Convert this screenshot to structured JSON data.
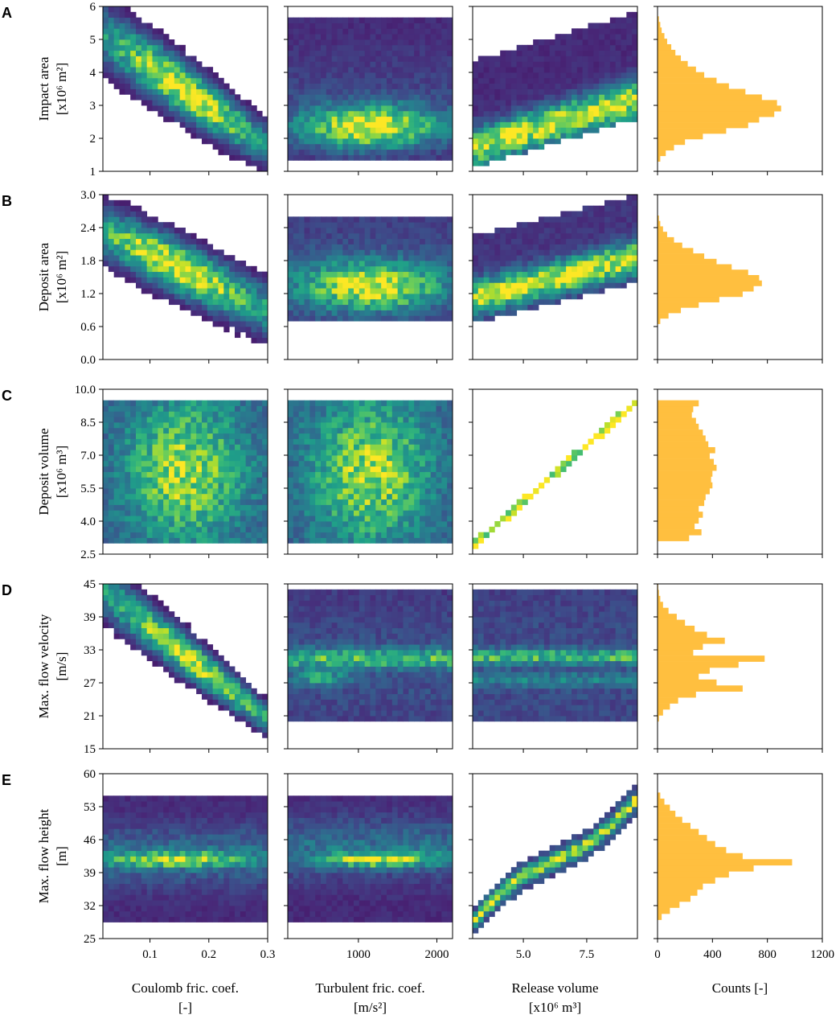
{
  "chart_data": {
    "type": "heatmap",
    "layout": "5 rows x 4 columns grid: 2D histograms of outputs vs inputs, plus marginal histogram of each output",
    "colors": {
      "heatmap_colormap": "viridis",
      "histogram": "#ffbf3f"
    },
    "row_letters": [
      "A",
      "B",
      "C",
      "D",
      "E"
    ],
    "columns": [
      {
        "name": "coulomb",
        "xlabel": [
          "Coulomb fric. coef.",
          "[-]"
        ],
        "xlim": [
          0.02,
          0.3
        ],
        "xticks": [
          "0.1",
          "0.2",
          "0.3"
        ],
        "xtick_values": [
          0.1,
          0.2,
          0.3
        ]
      },
      {
        "name": "turbulent",
        "xlabel": [
          "Turbulent fric. coef.",
          "[m/s²]"
        ],
        "xlim": [
          100,
          2200
        ],
        "xticks": [
          "1000",
          "2000"
        ],
        "xtick_values": [
          1000,
          2000
        ]
      },
      {
        "name": "release",
        "xlabel": [
          "Release volume",
          "[x10⁶ m³]"
        ],
        "xlim": [
          3.0,
          9.5
        ],
        "xticks": [
          "5.0",
          "7.5"
        ],
        "xtick_values": [
          5.0,
          7.5
        ]
      },
      {
        "name": "counts",
        "xlabel": [
          "Counts [-]",
          ""
        ],
        "xlim": [
          0,
          1200
        ],
        "xticks": [
          "0",
          "400",
          "800",
          "1200"
        ],
        "xtick_values": [
          0,
          400,
          800,
          1200
        ]
      }
    ],
    "rows": [
      {
        "letter": "A",
        "ylabel": [
          "Impact area",
          "[x10⁶ m²]"
        ],
        "ylim": [
          1,
          6
        ],
        "yticks": [
          "1",
          "2",
          "3",
          "4",
          "5",
          "6"
        ],
        "ytick_values": [
          1,
          2,
          3,
          4,
          5,
          6
        ],
        "data_range": [
          1.3,
          5.7
        ],
        "hist_counts": [
          20,
          60,
          120,
          200,
          330,
          500,
          660,
          740,
          850,
          900,
          870,
          760,
          640,
          520,
          430,
          340,
          280,
          220,
          170,
          130,
          100,
          70,
          50,
          30,
          20,
          10
        ]
      },
      {
        "letter": "B",
        "ylabel": [
          "Deposit area",
          "[x10⁶ m²]"
        ],
        "ylim": [
          0.0,
          3.0
        ],
        "yticks": [
          "0.0",
          "0.6",
          "1.2",
          "1.8",
          "2.4",
          "3.0"
        ],
        "ytick_values": [
          0.0,
          0.6,
          1.2,
          1.8,
          2.4,
          3.0
        ],
        "data_range": [
          0.65,
          2.62
        ],
        "hist_counts": [
          20,
          80,
          170,
          300,
          450,
          620,
          700,
          760,
          740,
          660,
          540,
          430,
          340,
          260,
          180,
          120,
          70,
          40,
          20,
          10
        ]
      },
      {
        "letter": "C",
        "ylabel": [
          "Deposit volume",
          "[x10⁶ m³]"
        ],
        "ylim": [
          2.5,
          10.0
        ],
        "yticks": [
          "2.5",
          "4.0",
          "5.5",
          "7.0",
          "8.5",
          "10.0"
        ],
        "ytick_values": [
          2.5,
          4.0,
          5.5,
          7.0,
          8.5,
          10.0
        ],
        "data_range": [
          3.1,
          9.5
        ],
        "hist_counts": [
          230,
          320,
          270,
          300,
          330,
          300,
          340,
          350,
          380,
          400,
          390,
          400,
          430,
          410,
          380,
          420,
          370,
          350,
          330,
          300,
          280,
          250,
          260,
          300
        ]
      },
      {
        "letter": "D",
        "ylabel": [
          "Max. flow velocity",
          "[m/s]"
        ],
        "ylim": [
          15,
          45
        ],
        "yticks": [
          "15",
          "21",
          "27",
          "33",
          "39",
          "45"
        ],
        "ytick_values": [
          15,
          21,
          27,
          33,
          39,
          45
        ],
        "data_range": [
          20,
          45
        ],
        "hist_counts": [
          10,
          40,
          90,
          150,
          280,
          620,
          430,
          300,
          380,
          590,
          780,
          260,
          330,
          490,
          360,
          270,
          200,
          140,
          80,
          40,
          20,
          10,
          5
        ]
      },
      {
        "letter": "E",
        "ylabel": [
          "Max. flow height",
          "[m]"
        ],
        "ylim": [
          25,
          60
        ],
        "yticks": [
          "25",
          "32",
          "39",
          "46",
          "53",
          "60"
        ],
        "ytick_values": [
          25,
          32,
          39,
          46,
          53,
          60
        ],
        "data_range": [
          29,
          56
        ],
        "hist_counts": [
          30,
          90,
          160,
          240,
          290,
          330,
          420,
          520,
          700,
          980,
          620,
          500,
          420,
          360,
          300,
          240,
          180,
          130,
          90,
          50,
          20
        ]
      }
    ]
  }
}
